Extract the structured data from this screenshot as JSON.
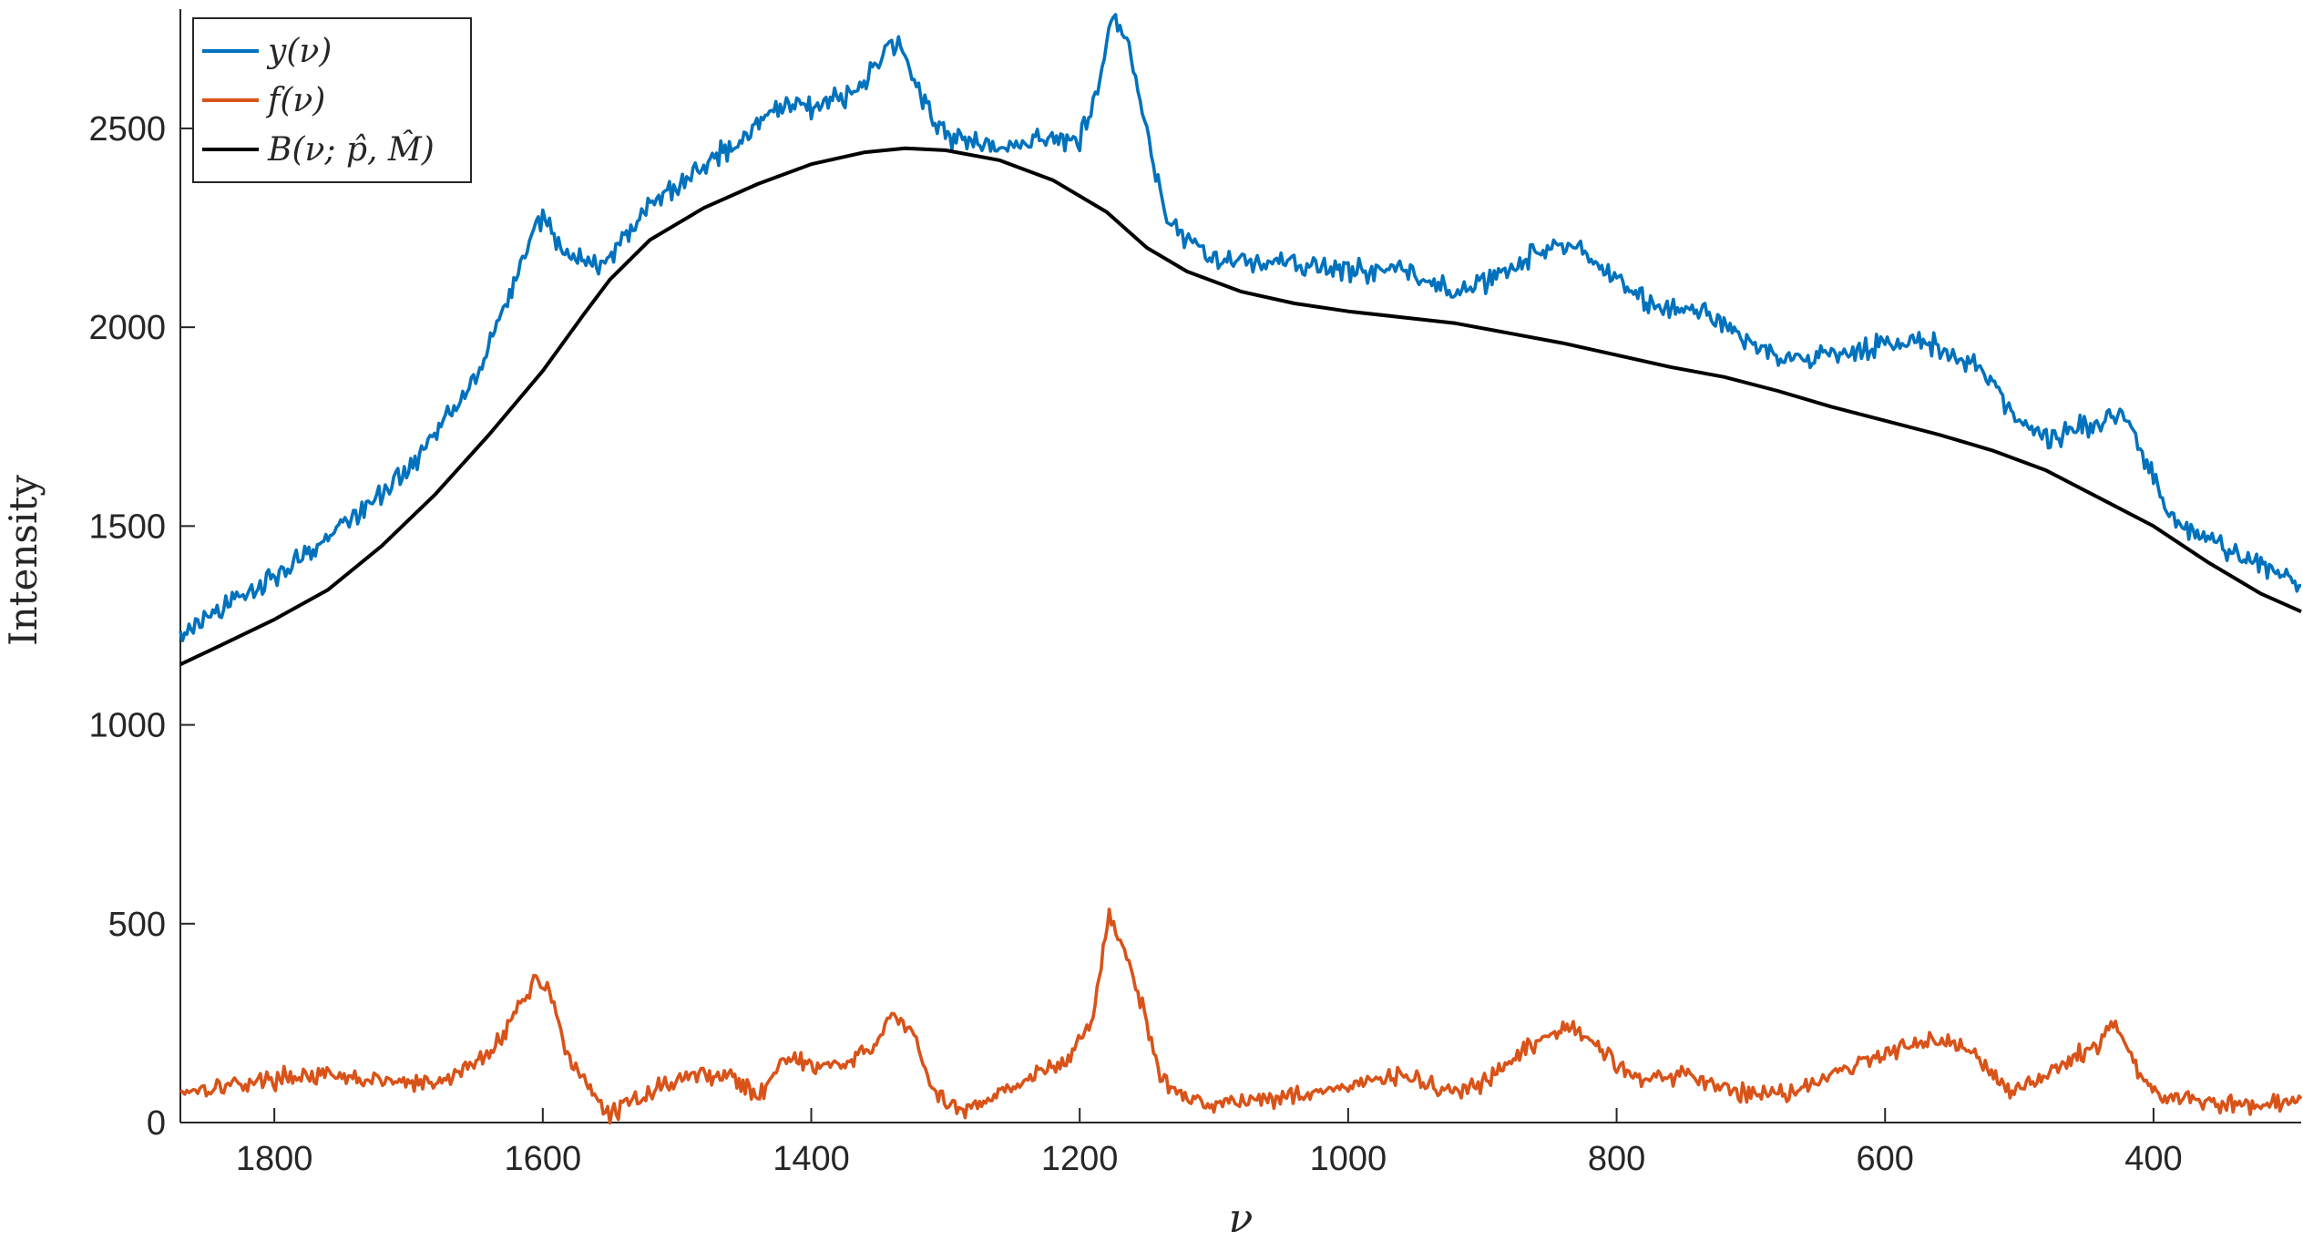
{
  "chart_data": {
    "type": "line",
    "xlabel": "ν",
    "ylabel": "Intensity",
    "x_reversed": true,
    "xlim": [
      1870,
      290
    ],
    "ylim": [
      0,
      2800
    ],
    "xticks": [
      1800,
      1600,
      1400,
      1200,
      1000,
      800,
      600,
      400
    ],
    "yticks": [
      0,
      500,
      1000,
      1500,
      2000,
      2500
    ],
    "grid": false,
    "legend_position": "top-left",
    "colors": {
      "y": "#0072BD",
      "f": "#D95319",
      "B": "#000000"
    },
    "series": [
      {
        "id": "y",
        "name": "y(ν)",
        "color": "#0072BD",
        "noise": 28,
        "points": [
          [
            1870,
            1225
          ],
          [
            1820,
            1330
          ],
          [
            1760,
            1470
          ],
          [
            1700,
            1640
          ],
          [
            1650,
            1880
          ],
          [
            1620,
            2120
          ],
          [
            1605,
            2270
          ],
          [
            1595,
            2260
          ],
          [
            1585,
            2190
          ],
          [
            1560,
            2150
          ],
          [
            1520,
            2300
          ],
          [
            1480,
            2410
          ],
          [
            1450,
            2480
          ],
          [
            1420,
            2570
          ],
          [
            1400,
            2560
          ],
          [
            1370,
            2580
          ],
          [
            1345,
            2700
          ],
          [
            1335,
            2730
          ],
          [
            1320,
            2590
          ],
          [
            1300,
            2480
          ],
          [
            1260,
            2450
          ],
          [
            1230,
            2470
          ],
          [
            1200,
            2480
          ],
          [
            1190,
            2560
          ],
          [
            1175,
            2790
          ],
          [
            1165,
            2720
          ],
          [
            1150,
            2500
          ],
          [
            1140,
            2330
          ],
          [
            1130,
            2250
          ],
          [
            1100,
            2170
          ],
          [
            1050,
            2160
          ],
          [
            1000,
            2140
          ],
          [
            960,
            2150
          ],
          [
            920,
            2080
          ],
          [
            880,
            2150
          ],
          [
            850,
            2200
          ],
          [
            830,
            2200
          ],
          [
            800,
            2120
          ],
          [
            770,
            2040
          ],
          [
            750,
            2050
          ],
          [
            720,
            2010
          ],
          [
            700,
            1960
          ],
          [
            670,
            1920
          ],
          [
            640,
            1930
          ],
          [
            600,
            1960
          ],
          [
            570,
            1960
          ],
          [
            540,
            1920
          ],
          [
            520,
            1860
          ],
          [
            500,
            1760
          ],
          [
            480,
            1720
          ],
          [
            450,
            1750
          ],
          [
            430,
            1770
          ],
          [
            420,
            1780
          ],
          [
            410,
            1700
          ],
          [
            395,
            1570
          ],
          [
            380,
            1500
          ],
          [
            350,
            1450
          ],
          [
            320,
            1400
          ],
          [
            290,
            1350
          ]
        ]
      },
      {
        "id": "f",
        "name": "f(ν)",
        "color": "#D95319",
        "noise": 22,
        "points": [
          [
            1870,
            80
          ],
          [
            1820,
            100
          ],
          [
            1780,
            120
          ],
          [
            1740,
            110
          ],
          [
            1680,
            95
          ],
          [
            1640,
            170
          ],
          [
            1620,
            280
          ],
          [
            1605,
            360
          ],
          [
            1595,
            340
          ],
          [
            1580,
            150
          ],
          [
            1560,
            60
          ],
          [
            1550,
            20
          ],
          [
            1520,
            80
          ],
          [
            1490,
            120
          ],
          [
            1460,
            120
          ],
          [
            1440,
            60
          ],
          [
            1420,
            170
          ],
          [
            1400,
            140
          ],
          [
            1370,
            150
          ],
          [
            1350,
            200
          ],
          [
            1340,
            280
          ],
          [
            1325,
            230
          ],
          [
            1310,
            80
          ],
          [
            1290,
            25
          ],
          [
            1270,
            60
          ],
          [
            1240,
            110
          ],
          [
            1210,
            150
          ],
          [
            1190,
            270
          ],
          [
            1178,
            520
          ],
          [
            1165,
            420
          ],
          [
            1150,
            250
          ],
          [
            1140,
            110
          ],
          [
            1120,
            60
          ],
          [
            1100,
            50
          ],
          [
            1060,
            60
          ],
          [
            1000,
            90
          ],
          [
            960,
            120
          ],
          [
            930,
            80
          ],
          [
            900,
            90
          ],
          [
            880,
            150
          ],
          [
            860,
            200
          ],
          [
            840,
            240
          ],
          [
            820,
            210
          ],
          [
            800,
            150
          ],
          [
            780,
            110
          ],
          [
            750,
            120
          ],
          [
            720,
            90
          ],
          [
            700,
            70
          ],
          [
            670,
            80
          ],
          [
            640,
            120
          ],
          [
            610,
            160
          ],
          [
            590,
            190
          ],
          [
            570,
            210
          ],
          [
            550,
            200
          ],
          [
            530,
            170
          ],
          [
            510,
            80
          ],
          [
            490,
            100
          ],
          [
            460,
            160
          ],
          [
            440,
            200
          ],
          [
            430,
            260
          ],
          [
            420,
            180
          ],
          [
            410,
            120
          ],
          [
            390,
            60
          ],
          [
            360,
            50
          ],
          [
            320,
            40
          ],
          [
            290,
            60
          ]
        ]
      },
      {
        "id": "B",
        "name": "B(ν; p̂, M̂)",
        "color": "#000000",
        "noise": 0,
        "points": [
          [
            1870,
            1152
          ],
          [
            1840,
            1200
          ],
          [
            1800,
            1265
          ],
          [
            1760,
            1340
          ],
          [
            1720,
            1450
          ],
          [
            1680,
            1580
          ],
          [
            1640,
            1730
          ],
          [
            1600,
            1890
          ],
          [
            1570,
            2030
          ],
          [
            1550,
            2120
          ],
          [
            1520,
            2220
          ],
          [
            1480,
            2300
          ],
          [
            1440,
            2360
          ],
          [
            1400,
            2410
          ],
          [
            1360,
            2440
          ],
          [
            1330,
            2450
          ],
          [
            1300,
            2445
          ],
          [
            1260,
            2420
          ],
          [
            1220,
            2370
          ],
          [
            1180,
            2290
          ],
          [
            1150,
            2200
          ],
          [
            1120,
            2140
          ],
          [
            1080,
            2090
          ],
          [
            1040,
            2060
          ],
          [
            1000,
            2040
          ],
          [
            960,
            2025
          ],
          [
            920,
            2010
          ],
          [
            880,
            1985
          ],
          [
            840,
            1960
          ],
          [
            800,
            1930
          ],
          [
            760,
            1900
          ],
          [
            720,
            1875
          ],
          [
            680,
            1840
          ],
          [
            640,
            1800
          ],
          [
            600,
            1765
          ],
          [
            560,
            1730
          ],
          [
            520,
            1690
          ],
          [
            480,
            1640
          ],
          [
            440,
            1570
          ],
          [
            400,
            1500
          ],
          [
            360,
            1410
          ],
          [
            320,
            1330
          ],
          [
            290,
            1285
          ]
        ]
      }
    ]
  }
}
